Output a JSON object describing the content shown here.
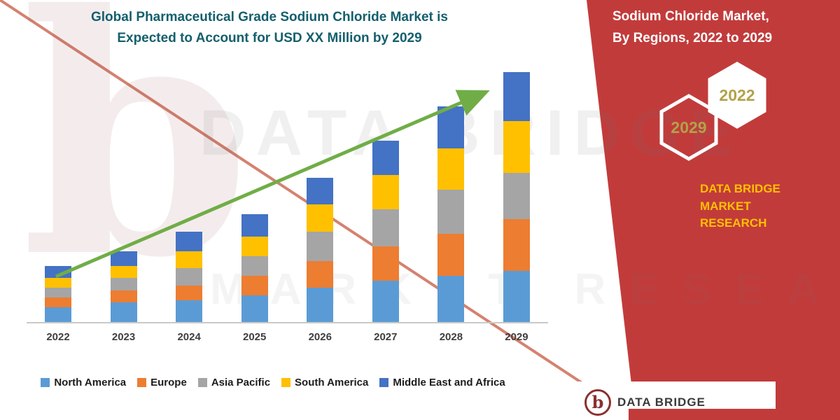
{
  "header": {
    "title_line1": "Global Pharmaceutical Grade Sodium Chloride Market is",
    "title_line2": "Expected to Account for USD XX Million by 2029"
  },
  "right_panel": {
    "bg_color": "#c23b3b",
    "edge_color": "#d4826f",
    "heading_line1": "Sodium Chloride Market,",
    "heading_line2": "By Regions, 2022 to 2029",
    "hexagons": [
      {
        "label": "2029"
      },
      {
        "label": "2022"
      }
    ],
    "brand_line1": "DATA BRIDGE MARKET",
    "brand_line2": "RESEARCH",
    "brand_color": "#ffc000"
  },
  "watermark": {
    "line1": "DATA BRIDGE",
    "line2": "MARKET RESEARCH",
    "logo_glyph": "b"
  },
  "footer_logo": {
    "glyph": "b",
    "text": "DATA BRIDGE"
  },
  "trend_arrow_color": "#70ad47",
  "chart_data": {
    "type": "bar",
    "stacked": true,
    "title": "Global Pharmaceutical Grade Sodium Chloride Market is Expected to Account for USD XX Million by 2029",
    "xlabel": "",
    "ylabel": "",
    "units": "USD Million (actual values shown as XX, estimated relative units)",
    "ylim": [
      0,
      110
    ],
    "grid": false,
    "legend_position": "bottom",
    "trend_arrow": true,
    "categories": [
      "2022",
      "2023",
      "2024",
      "2025",
      "2026",
      "2027",
      "2028",
      "2029"
    ],
    "series": [
      {
        "name": "North America",
        "color": "#5B9BD5",
        "values": [
          6,
          8,
          9,
          11,
          14,
          17,
          19,
          21
        ]
      },
      {
        "name": "Europe",
        "color": "#ED7D31",
        "values": [
          4,
          5,
          6,
          8,
          11,
          14,
          17,
          21
        ]
      },
      {
        "name": "Asia Pacific",
        "color": "#A5A5A5",
        "values": [
          4,
          5,
          7,
          8,
          12,
          15,
          18,
          19
        ]
      },
      {
        "name": "South America",
        "color": "#FFC000",
        "values": [
          4,
          5,
          7,
          8,
          11,
          14,
          17,
          21
        ]
      },
      {
        "name": "Middle East and Africa",
        "color": "#4472C4",
        "values": [
          5,
          6,
          8,
          9,
          11,
          14,
          17,
          20
        ]
      }
    ],
    "totals": [
      23,
      29,
      37,
      44,
      59,
      74,
      88,
      102
    ]
  }
}
